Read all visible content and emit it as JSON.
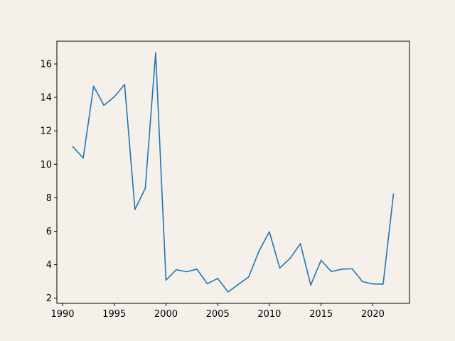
{
  "background_color": "#f6f0ea",
  "chart_data": {
    "type": "line",
    "title": "",
    "xlabel": "",
    "ylabel": "",
    "xlim": [
      1989.45,
      2023.55
    ],
    "ylim": [
      1.69,
      17.36
    ],
    "xticks": [
      1990,
      1995,
      2000,
      2005,
      2010,
      2015,
      2020
    ],
    "yticks": [
      2,
      4,
      6,
      8,
      10,
      12,
      14,
      16
    ],
    "grid": false,
    "legend": "none",
    "series": [
      {
        "color": "#1f77b4",
        "x": [
          1991,
          1992,
          1993,
          1994,
          1995,
          1996,
          1997,
          1998,
          1999,
          2000,
          2001,
          2002,
          2003,
          2004,
          2005,
          2006,
          2007,
          2008,
          2009,
          2010,
          2011,
          2012,
          2013,
          2014,
          2015,
          2016,
          2017,
          2018,
          2019,
          2020,
          2021,
          2022
        ],
        "y": [
          11.05,
          10.38,
          14.67,
          13.53,
          14.03,
          14.77,
          7.3,
          8.57,
          16.67,
          3.08,
          3.7,
          3.58,
          3.73,
          2.86,
          3.18,
          2.37,
          2.82,
          3.27,
          4.82,
          5.97,
          3.8,
          4.38,
          5.26,
          2.78,
          4.26,
          3.59,
          3.73,
          3.76,
          2.99,
          2.85,
          2.84,
          8.22
        ]
      }
    ]
  }
}
